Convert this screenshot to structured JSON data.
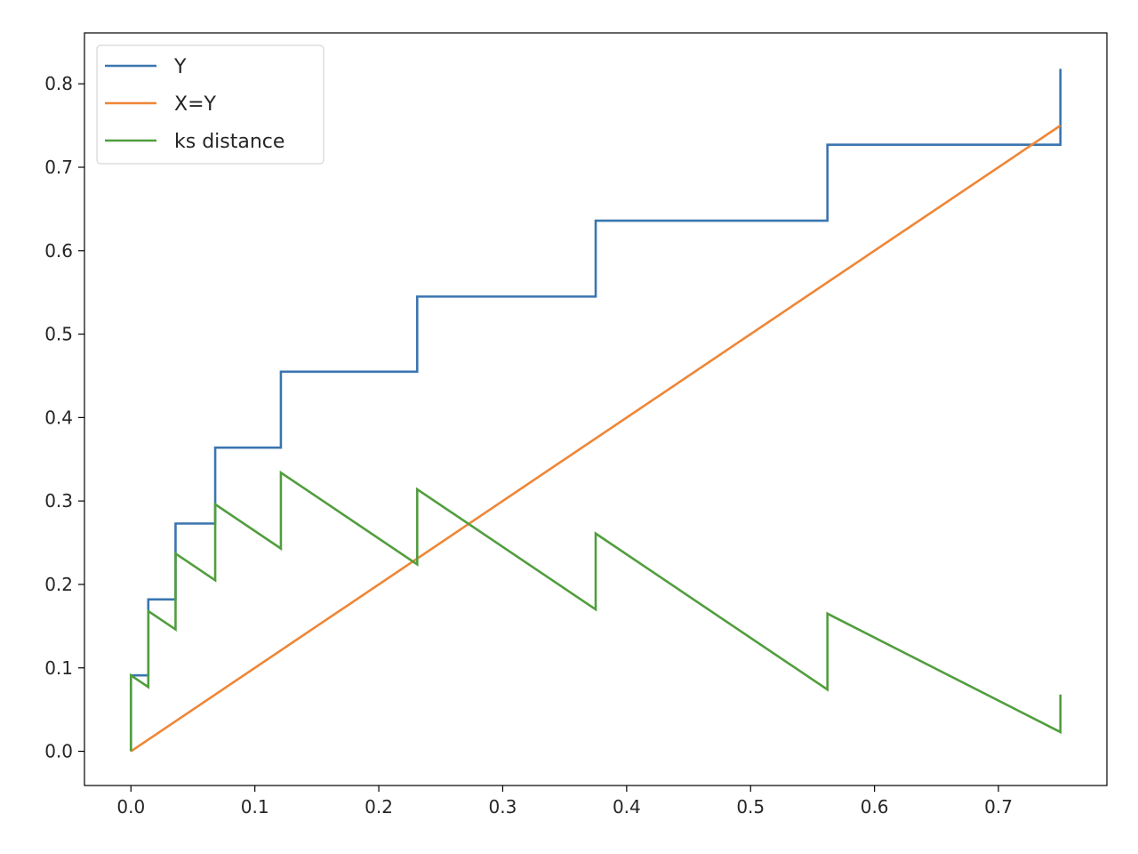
{
  "chart_data": {
    "type": "line",
    "title": "",
    "xlabel": "",
    "ylabel": "",
    "xlim": [
      -0.0375,
      0.7875
    ],
    "ylim": [
      -0.041,
      0.861
    ],
    "grid": false,
    "legend_position": "top-left",
    "xticks": [
      0.0,
      0.1,
      0.2,
      0.3,
      0.4,
      0.5,
      0.6,
      0.7
    ],
    "xtick_labels": [
      "0.0",
      "0.1",
      "0.2",
      "0.3",
      "0.4",
      "0.5",
      "0.6",
      "0.7"
    ],
    "yticks": [
      0.0,
      0.1,
      0.2,
      0.3,
      0.4,
      0.5,
      0.6,
      0.7,
      0.8
    ],
    "ytick_labels": [
      "0.0",
      "0.1",
      "0.2",
      "0.3",
      "0.4",
      "0.5",
      "0.6",
      "0.7",
      "0.8"
    ],
    "series": [
      {
        "name": "Y",
        "color": "#3a75b0",
        "x": [
          0.0,
          0.0,
          0.014,
          0.014,
          0.036,
          0.036,
          0.068,
          0.068,
          0.121,
          0.121,
          0.231,
          0.231,
          0.375,
          0.375,
          0.562,
          0.562,
          0.75,
          0.75
        ],
        "y": [
          0.0,
          0.091,
          0.091,
          0.182,
          0.182,
          0.273,
          0.273,
          0.364,
          0.364,
          0.455,
          0.455,
          0.545,
          0.545,
          0.636,
          0.636,
          0.727,
          0.727,
          0.818
        ]
      },
      {
        "name": "X=Y",
        "color": "#ef8636",
        "x": [
          0.0,
          0.75
        ],
        "y": [
          0.0,
          0.75
        ]
      },
      {
        "name": "ks distance",
        "color": "#519e3e",
        "x": [
          0.0,
          0.0,
          0.014,
          0.014,
          0.036,
          0.036,
          0.068,
          0.068,
          0.121,
          0.121,
          0.231,
          0.231,
          0.375,
          0.375,
          0.562,
          0.562,
          0.75,
          0.75
        ],
        "y": [
          0.0,
          0.091,
          0.077,
          0.168,
          0.146,
          0.237,
          0.205,
          0.296,
          0.243,
          0.334,
          0.224,
          0.314,
          0.17,
          0.261,
          0.074,
          0.165,
          0.023,
          0.068
        ]
      }
    ]
  }
}
